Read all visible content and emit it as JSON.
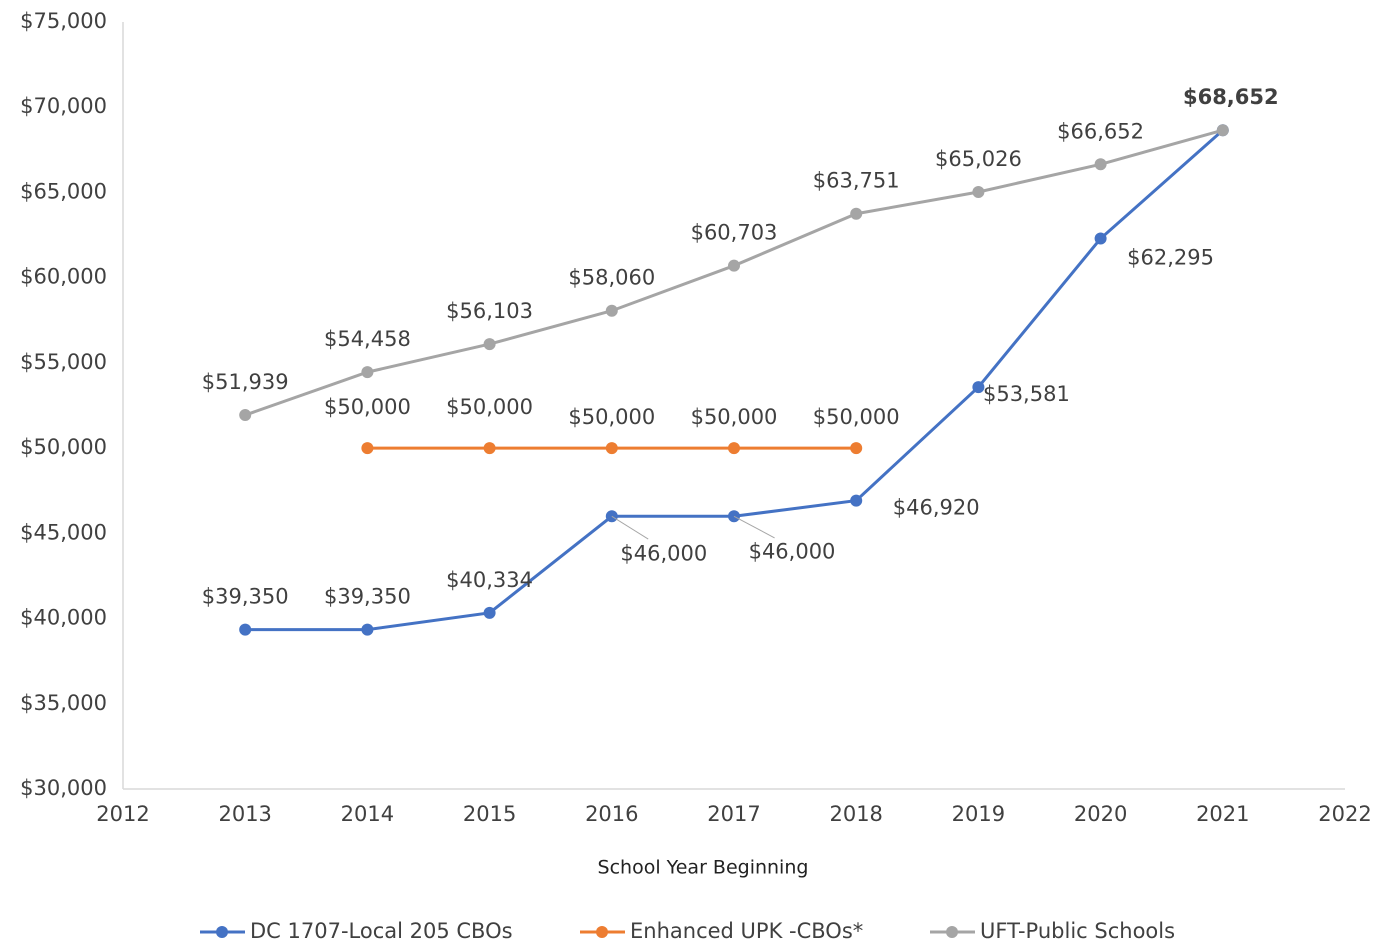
{
  "chart_data": {
    "type": "line",
    "x_label": "School Year Beginning",
    "x": [
      2013,
      2014,
      2015,
      2016,
      2017,
      2018,
      2019,
      2020,
      2021
    ],
    "series": [
      {
        "name": "DC 1707-Local 205 CBOs",
        "color": "#4472c4",
        "values": [
          39350,
          39350,
          40334,
          46000,
          46000,
          46920,
          53581,
          62295,
          68652
        ],
        "value_labels": [
          "$39,350",
          "$39,350",
          "$40,334",
          "$46,000",
          "$46,000",
          "$46,920",
          "$53,581",
          "$62,295",
          null
        ]
      },
      {
        "name": "Enhanced UPK -CBOs*",
        "color": "#ed7d31",
        "values": [
          null,
          50000,
          50000,
          50000,
          50000,
          50000,
          null,
          null,
          null
        ],
        "value_labels": [
          null,
          "$50,000",
          "$50,000",
          "$50,000",
          "$50,000",
          "$50,000",
          null,
          null,
          null
        ]
      },
      {
        "name": "UFT-Public Schools",
        "color": "#a5a5a5",
        "values": [
          51939,
          54458,
          56103,
          58060,
          60703,
          63751,
          65026,
          66652,
          68652
        ],
        "value_labels": [
          "$51,939",
          "$54,458",
          "$56,103",
          "$58,060",
          "$60,703",
          "$63,751",
          "$65,026",
          "$66,652",
          "$68,652"
        ]
      }
    ],
    "xlim": [
      2012,
      2022
    ],
    "xticks": [
      2012,
      2013,
      2014,
      2015,
      2016,
      2017,
      2018,
      2019,
      2020,
      2021,
      2022
    ],
    "ylim": [
      30000,
      75000
    ],
    "yticks": [
      {
        "value": 30000,
        "label": "$30,000"
      },
      {
        "value": 35000,
        "label": "$35,000"
      },
      {
        "value": 40000,
        "label": "$40,000"
      },
      {
        "value": 45000,
        "label": "$45,000"
      },
      {
        "value": 50000,
        "label": "$50,000"
      },
      {
        "value": 55000,
        "label": "$55,000"
      },
      {
        "value": 60000,
        "label": "$60,000"
      },
      {
        "value": 65000,
        "label": "$65,000"
      },
      {
        "value": 70000,
        "label": "$70,000"
      },
      {
        "value": 75000,
        "label": "$75,000"
      }
    ],
    "grid": false,
    "legend": "bottom"
  }
}
